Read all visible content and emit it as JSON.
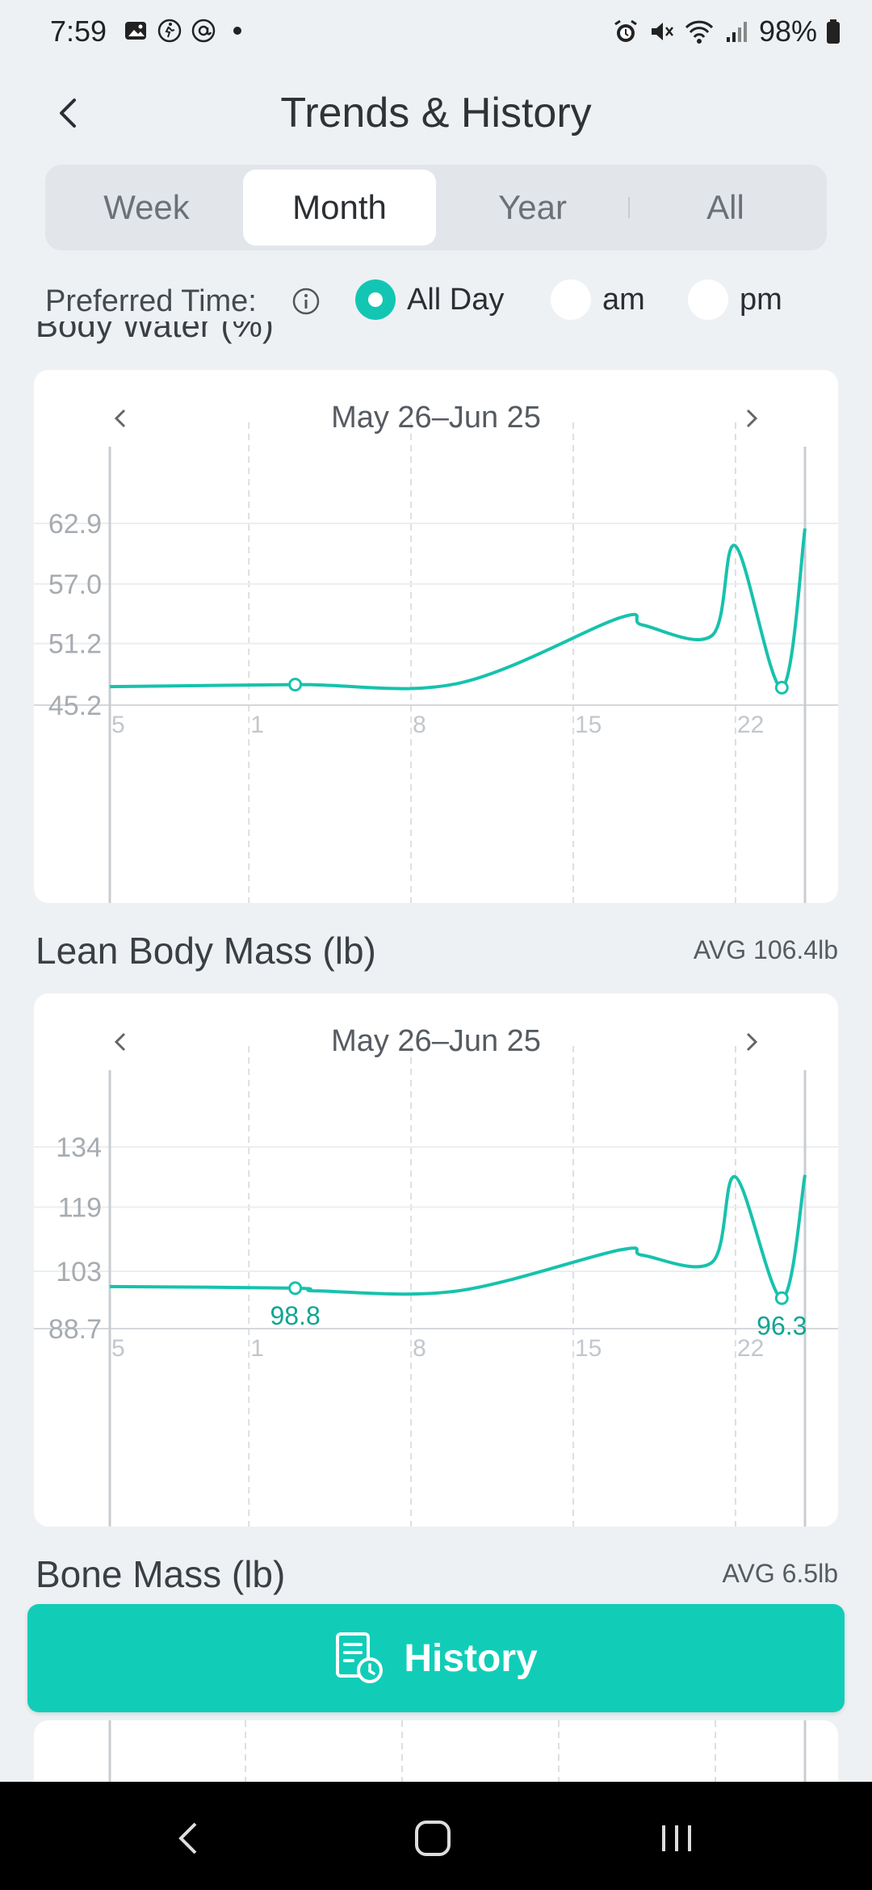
{
  "status_bar": {
    "time": "7:59",
    "battery": "98%"
  },
  "header": {
    "title": "Trends & History"
  },
  "tabs": [
    {
      "label": "Week",
      "active": false
    },
    {
      "label": "Month",
      "active": true
    },
    {
      "label": "Year",
      "active": false
    },
    {
      "label": "All",
      "active": false
    }
  ],
  "preferred_time": {
    "label": "Preferred Time:",
    "options": [
      {
        "label": "All Day",
        "selected": true
      },
      {
        "label": "am",
        "selected": false
      },
      {
        "label": "pm",
        "selected": false
      }
    ]
  },
  "body_water": {
    "title_peek": "Body Water (%)",
    "range": "May 26–Jun 25"
  },
  "lean_body_mass": {
    "title": "Lean Body Mass (lb)",
    "avg": "AVG 106.4lb",
    "range": "May 26–Jun 25",
    "annotations": [
      "98.8",
      "96.3"
    ]
  },
  "bone_mass": {
    "title": "Bone Mass (lb)",
    "avg": "AVG 6.5lb"
  },
  "history_button": {
    "label": "History"
  },
  "colors": {
    "accent": "#13c6b4",
    "button": "#11cdb8",
    "line": "#17c2ad"
  },
  "chart_data": [
    {
      "type": "line",
      "title": "Body Water (%)",
      "x_tick_labels": [
        "5",
        "1",
        "8",
        "15",
        "22"
      ],
      "y_tick_labels": [
        "62.9",
        "57.0",
        "51.2",
        "45.2"
      ],
      "ylim": [
        45.2,
        62.9
      ],
      "grid": true,
      "x": [
        "May 26",
        "Jun 3",
        "Jun 10",
        "Jun 17",
        "Jun 18",
        "Jun 21",
        "Jun 22",
        "Jun 24",
        "Jun 25"
      ],
      "values": [
        47.0,
        47.2,
        47.3,
        53.7,
        53.0,
        52.0,
        60.7,
        46.9,
        62.4
      ]
    },
    {
      "type": "line",
      "title": "Lean Body Mass (lb)",
      "x_tick_labels": [
        "5",
        "1",
        "8",
        "15",
        "22"
      ],
      "y_tick_labels": [
        "134",
        "119",
        "103",
        "88.7"
      ],
      "ylim": [
        88.7,
        134
      ],
      "grid": true,
      "x": [
        "May 26",
        "Jun 3",
        "Jun 4",
        "Jun 10",
        "Jun 17",
        "Jun 18",
        "Jun 21",
        "Jun 22",
        "Jun 24",
        "Jun 25"
      ],
      "values": [
        99.2,
        98.8,
        98.1,
        98.1,
        108.3,
        107.0,
        105.3,
        126.5,
        96.3,
        127.0
      ]
    }
  ]
}
